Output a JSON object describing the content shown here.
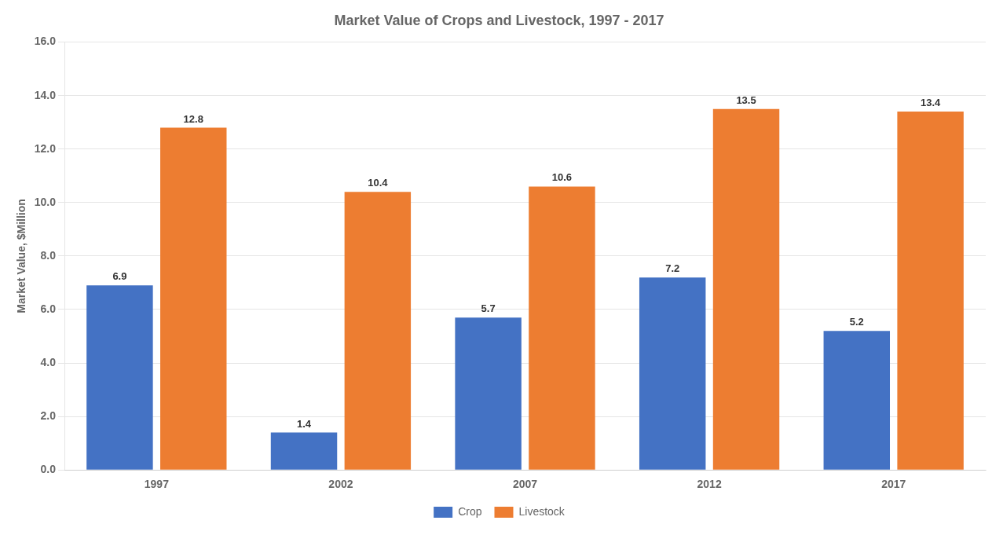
{
  "chart_data": {
    "type": "bar",
    "title": "Market Value of Crops and Livestock, 1997 - 2017",
    "ylabel": "Market Value, $Million",
    "categories": [
      "1997",
      "2002",
      "2007",
      "2012",
      "2017"
    ],
    "series": [
      {
        "name": "Crop",
        "color": "#4472C4",
        "values": [
          6.9,
          1.4,
          5.7,
          7.2,
          5.2
        ]
      },
      {
        "name": "Livestock",
        "color": "#ED7D31",
        "values": [
          12.8,
          10.4,
          10.6,
          13.5,
          13.4
        ]
      }
    ],
    "ylim": [
      0,
      16.0
    ],
    "yticks": [
      {
        "value": 0.0,
        "label": "0.0"
      },
      {
        "value": 2.0,
        "label": "2.0"
      },
      {
        "value": 4.0,
        "label": "4.0"
      },
      {
        "value": 6.0,
        "label": "6.0"
      },
      {
        "value": 8.0,
        "label": "8.0"
      },
      {
        "value": 10.0,
        "label": "10.0"
      },
      {
        "value": 12.0,
        "label": "12.0"
      },
      {
        "value": 14.0,
        "label": "14.0"
      },
      {
        "value": 16.0,
        "label": "16.0"
      }
    ],
    "grid": true,
    "legend": "bottom",
    "data_labels": true
  }
}
